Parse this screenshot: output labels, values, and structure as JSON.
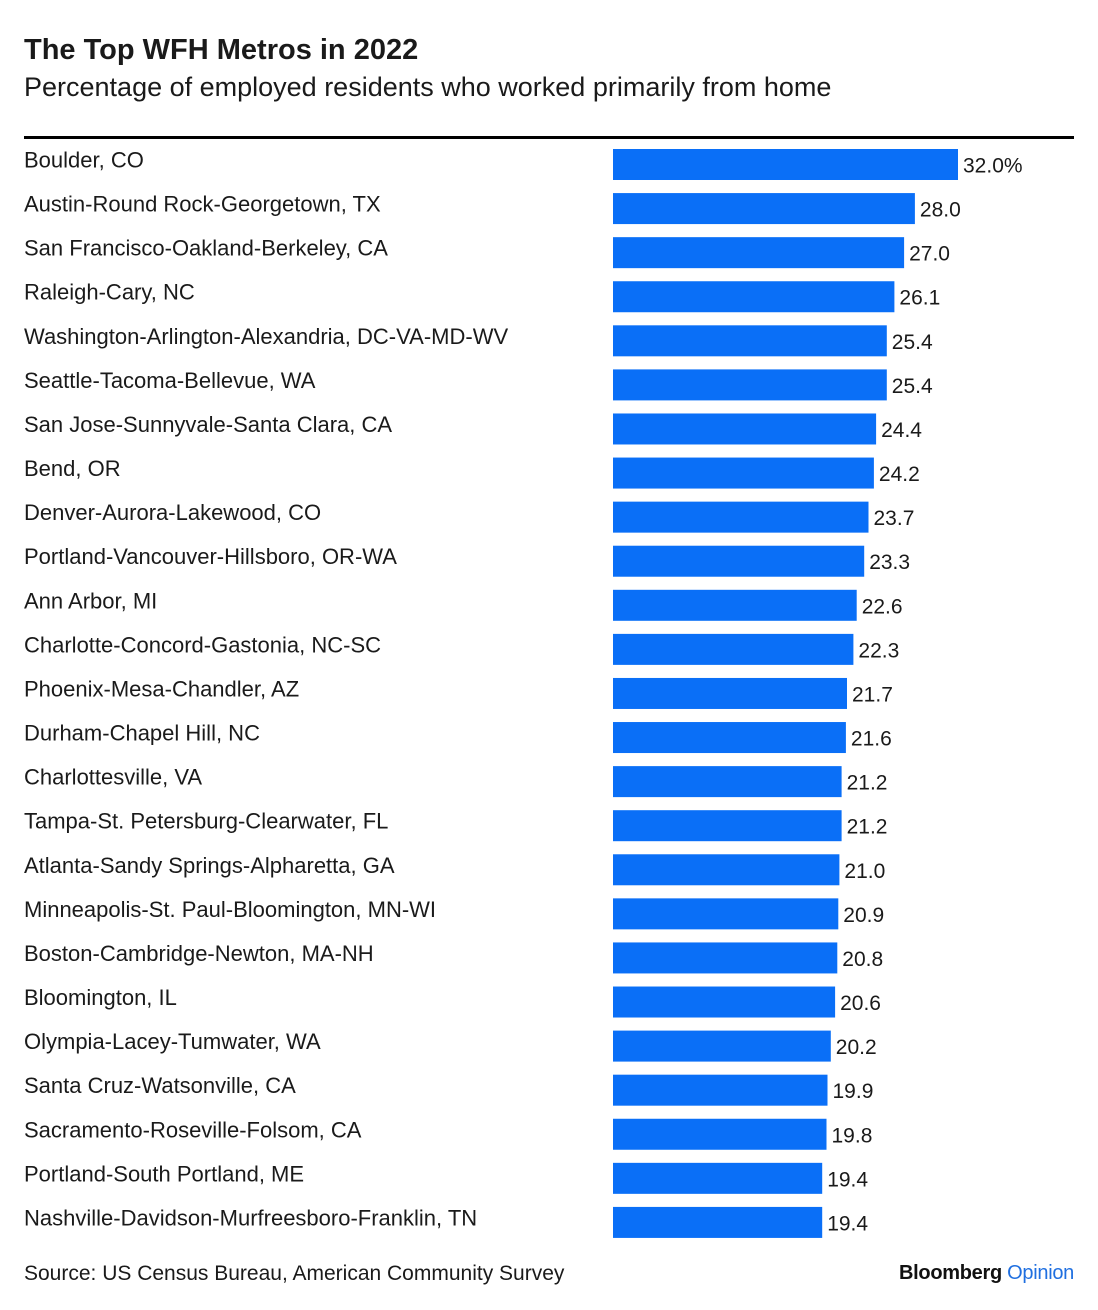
{
  "header": {
    "title": "The Top WFH Metros in 2022",
    "subtitle": "Percentage of employed residents who worked primarily from home"
  },
  "footer": {
    "source": "Source: US Census Bureau, American Community Survey",
    "brand_primary": "Bloomberg",
    "brand_secondary": "Opinion"
  },
  "colors": {
    "bar": "#0a6ff7",
    "brand_accent": "#1f6fe0"
  },
  "chart_data": {
    "type": "bar",
    "orientation": "horizontal",
    "title": "The Top WFH Metros in 2022",
    "subtitle": "Percentage of employed residents who worked primarily from home",
    "xlim": [
      0,
      32
    ],
    "grid": false,
    "categories": [
      "Boulder, CO",
      "Austin-Round Rock-Georgetown, TX",
      "San Francisco-Oakland-Berkeley, CA",
      "Raleigh-Cary, NC",
      "Washington-Arlington-Alexandria, DC-VA-MD-WV",
      "Seattle-Tacoma-Bellevue, WA",
      "San Jose-Sunnyvale-Santa Clara, CA",
      "Bend, OR",
      "Denver-Aurora-Lakewood, CO",
      "Portland-Vancouver-Hillsboro, OR-WA",
      "Ann Arbor, MI",
      "Charlotte-Concord-Gastonia, NC-SC",
      "Phoenix-Mesa-Chandler, AZ",
      "Durham-Chapel Hill, NC",
      "Charlottesville, VA",
      "Tampa-St. Petersburg-Clearwater, FL",
      "Atlanta-Sandy Springs-Alpharetta, GA",
      "Minneapolis-St. Paul-Bloomington, MN-WI",
      "Boston-Cambridge-Newton, MA-NH",
      "Bloomington, IL",
      "Olympia-Lacey-Tumwater, WA",
      "Santa Cruz-Watsonville, CA",
      "Sacramento-Roseville-Folsom, CA",
      "Portland-South Portland, ME",
      "Nashville-Davidson-Murfreesboro-Franklin, TN"
    ],
    "values": [
      32.0,
      28.0,
      27.0,
      26.1,
      25.4,
      25.4,
      24.4,
      24.2,
      23.7,
      23.3,
      22.6,
      22.3,
      21.7,
      21.6,
      21.2,
      21.2,
      21.0,
      20.9,
      20.8,
      20.6,
      20.2,
      19.9,
      19.8,
      19.4,
      19.4
    ],
    "value_labels": [
      "32.0%",
      "28.0",
      "27.0",
      "26.1",
      "25.4",
      "25.4",
      "24.4",
      "24.2",
      "23.7",
      "23.3",
      "22.6",
      "22.3",
      "21.7",
      "21.6",
      "21.2",
      "21.2",
      "21.0",
      "20.9",
      "20.8",
      "20.6",
      "20.2",
      "19.9",
      "19.8",
      "19.4",
      "19.4"
    ]
  }
}
